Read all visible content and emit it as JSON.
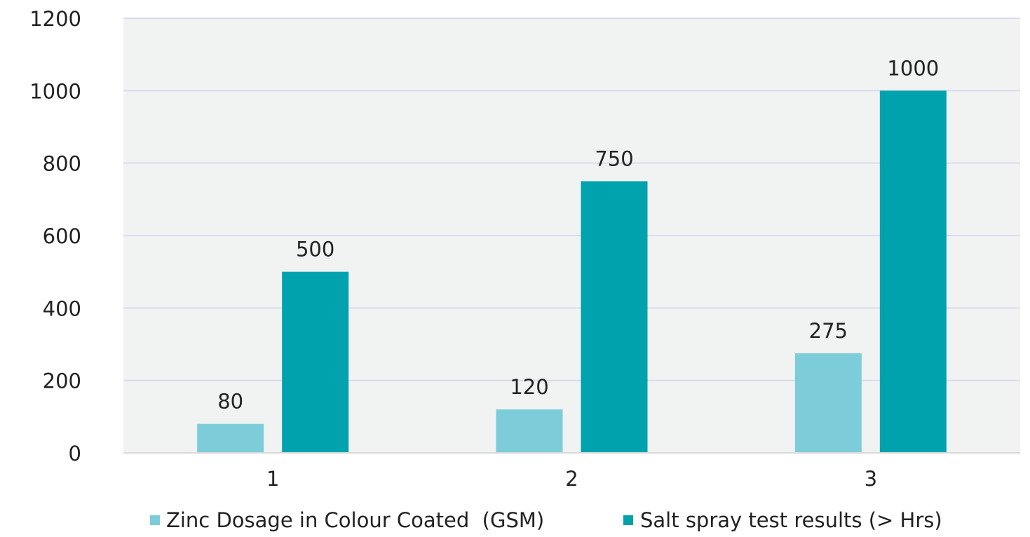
{
  "chart_data": {
    "type": "bar",
    "title": "",
    "xlabel": "",
    "ylabel": "",
    "categories": [
      "1",
      "2",
      "3"
    ],
    "series": [
      {
        "name": "Zinc Dosage in Colour Coated  (GSM)",
        "values": [
          80,
          120,
          275
        ],
        "color": "#7ccdd9"
      },
      {
        "name": "Salt spray test results (> Hrs)",
        "values": [
          500,
          750,
          1000
        ],
        "color": "#00a2ad"
      }
    ],
    "ylim": [
      0,
      1200
    ],
    "yticks": [
      0,
      200,
      400,
      600,
      800,
      1000,
      1200
    ],
    "grid": true,
    "legend_position": "bottom",
    "plot_background": "#f1f2f2",
    "gridline_color": "#d9dcef",
    "text_color": "#222222"
  }
}
